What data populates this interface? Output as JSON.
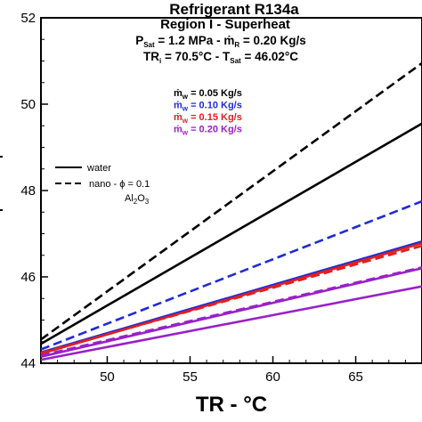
{
  "chart_data": {
    "type": "line",
    "title_lines": [
      "Refrigerant R134a",
      "Region I - Superheat"
    ],
    "conditions": {
      "line1": {
        "p_label": "P",
        "p_sub": "Sat",
        "p_value": " = 1.2 MPa - ",
        "m_label": "ṁ",
        "m_sub": "R",
        "m_value": " = 0.20 Kg/s"
      },
      "line2": {
        "t1_label": "TR",
        "t1_sub": "i",
        "t1_value": " = 70.5°C - T",
        "t2_sub": "Sat",
        "t2_value": " = 46.02°C"
      }
    },
    "xlabel": "TR - °C",
    "ylabel": "",
    "xlim": [
      46,
      69
    ],
    "ylim": [
      44,
      52
    ],
    "xticks": [
      50,
      55,
      60,
      65
    ],
    "yticks": [
      44,
      46,
      48,
      50,
      52
    ],
    "legend_fluid": {
      "water_label": "water",
      "nano_label": "nano - ϕ = 0.1",
      "nano_material": "Al",
      "nano_material_sub1": "2",
      "nano_material_mid": "O",
      "nano_material_sub2": "3"
    },
    "legend_flow": [
      {
        "prefix": "ṁ",
        "sub": "w",
        "value": " = 0.05 Kg/s",
        "color": "#000000"
      },
      {
        "prefix": "ṁ",
        "sub": "w",
        "value": " = 0.10 Kg/s",
        "color": "#1f2bd6"
      },
      {
        "prefix": "ṁ",
        "sub": "w",
        "value": " = 0.15 Kg/s",
        "color": "#e02020"
      },
      {
        "prefix": "ṁ",
        "sub": "w",
        "value": " = 0.20 Kg/s",
        "color": "#9a20c8"
      }
    ],
    "series": [
      {
        "flow": "0.05",
        "fluid": "water",
        "color": "#000000",
        "dash": false,
        "x": [
          46,
          69
        ],
        "y": [
          44.45,
          49.55
        ]
      },
      {
        "flow": "0.05",
        "fluid": "nano",
        "color": "#000000",
        "dash": true,
        "x": [
          46,
          69
        ],
        "y": [
          44.55,
          50.95
        ]
      },
      {
        "flow": "0.10",
        "fluid": "water",
        "color": "#1f2bd6",
        "dash": false,
        "x": [
          46,
          69
        ],
        "y": [
          44.25,
          46.82
        ]
      },
      {
        "flow": "0.10",
        "fluid": "nano",
        "color": "#1f2bd6",
        "dash": true,
        "x": [
          46,
          69
        ],
        "y": [
          44.32,
          47.75
        ]
      },
      {
        "flow": "0.15",
        "fluid": "water",
        "color": "#e02020",
        "dash": false,
        "x": [
          46,
          69
        ],
        "y": [
          44.22,
          46.78
        ]
      },
      {
        "flow": "0.15",
        "fluid": "nano",
        "color": "#e02020",
        "dash": true,
        "x": [
          46,
          69
        ],
        "y": [
          44.24,
          46.72
        ]
      },
      {
        "flow": "0.20",
        "fluid": "water",
        "color": "#9a20c8",
        "dash": false,
        "x": [
          46,
          69
        ],
        "y": [
          44.15,
          46.2
        ]
      },
      {
        "flow": "0.20",
        "fluid": "nano",
        "color": "#9a20c8",
        "dash": true,
        "x": [
          46,
          69
        ],
        "y": [
          44.18,
          46.22
        ]
      },
      {
        "flow": "0.20",
        "fluid": "water-lower",
        "color": "#9a20c8",
        "dash": false,
        "x": [
          46,
          69
        ],
        "y": [
          44.08,
          45.78
        ]
      }
    ]
  }
}
